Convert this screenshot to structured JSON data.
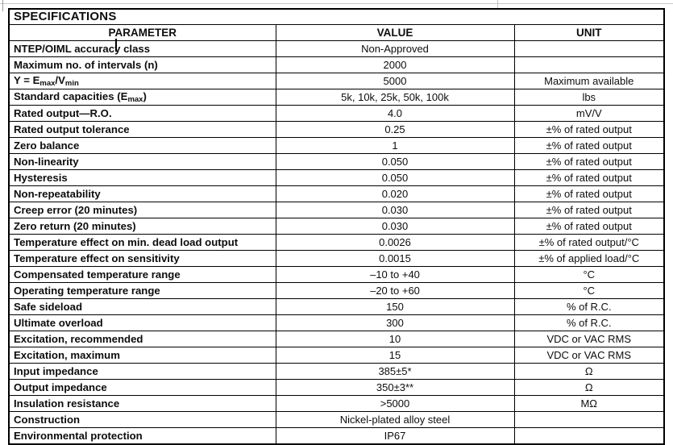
{
  "title": "SPECIFICATIONS",
  "table": {
    "columns": [
      "PARAMETER",
      "VALUE",
      "UNIT"
    ],
    "rows": [
      {
        "param": "NTEP/OIML accuracy class",
        "value": "Non-Approved",
        "unit": ""
      },
      {
        "param": "Maximum no. of intervals (n)",
        "value": "2000",
        "unit": ""
      },
      {
        "param": [
          {
            "t": "Y = E"
          },
          {
            "sub": "max"
          },
          {
            "t": "/V"
          },
          {
            "sub": "min"
          }
        ],
        "value": "5000",
        "unit": "Maximum available"
      },
      {
        "param": [
          {
            "t": "Standard capacities (E"
          },
          {
            "sub": "max"
          },
          {
            "t": ")"
          }
        ],
        "value": "5k, 10k, 25k, 50k, 100k",
        "unit": "lbs"
      },
      {
        "param": "Rated output—R.O.",
        "value": "4.0",
        "unit": "mV/V"
      },
      {
        "param": "Rated output tolerance",
        "value": "0.25",
        "unit": "±% of rated output"
      },
      {
        "param": "Zero balance",
        "value": "1",
        "unit": "±% of rated output"
      },
      {
        "param": "Non-linearity",
        "value": "0.050",
        "unit": "±% of rated output"
      },
      {
        "param": "Hysteresis",
        "value": "0.050",
        "unit": "±% of rated output"
      },
      {
        "param": "Non-repeatability",
        "value": "0.020",
        "unit": "±% of rated output"
      },
      {
        "param": "Creep error (20 minutes)",
        "value": "0.030",
        "unit": "±% of rated output"
      },
      {
        "param": "Zero return (20 minutes)",
        "value": "0.030",
        "unit": "±% of rated output"
      },
      {
        "param": "Temperature effect on min. dead load output",
        "value": "0.0026",
        "unit": "±% of rated output/°C"
      },
      {
        "param": "Temperature effect on sensitivity",
        "value": "0.0015",
        "unit": "±% of applied load/°C"
      },
      {
        "param": "Compensated temperature range",
        "value": "–10 to +40",
        "unit": "°C"
      },
      {
        "param": "Operating temperature range",
        "value": "–20 to +60",
        "unit": "°C"
      },
      {
        "param": "Safe sideload",
        "value": "150",
        "unit": "% of R.C."
      },
      {
        "param": "Ultimate overload",
        "value": "300",
        "unit": "% of R.C."
      },
      {
        "param": "Excitation, recommended",
        "value": "10",
        "unit": "VDC or VAC RMS"
      },
      {
        "param": "Excitation, maximum",
        "value": "15",
        "unit": "VDC or VAC RMS"
      },
      {
        "param": "Input impedance",
        "value": "385±5*",
        "unit": "Ω"
      },
      {
        "param": "Output impedance",
        "value": "350±3**",
        "unit": "Ω"
      },
      {
        "param": "Insulation resistance",
        "value": ">5000",
        "unit": "MΩ"
      },
      {
        "param": "Construction",
        "value": "Nickel-plated alloy steel",
        "unit": ""
      },
      {
        "param": "Environmental protection",
        "value": "IP67",
        "unit": ""
      }
    ]
  },
  "colors": {
    "border": "#000000",
    "text": "#0d0d0d",
    "background": "#ffffff"
  }
}
